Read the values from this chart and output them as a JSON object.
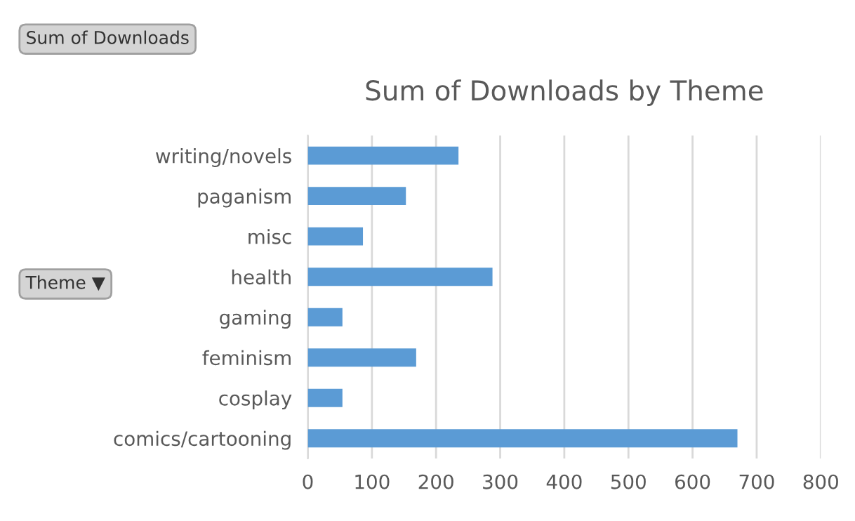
{
  "chart_data": {
    "type": "bar",
    "orientation": "horizontal",
    "title": "Sum of Downloads by Theme",
    "categories": [
      "writing/novels",
      "paganism",
      "misc",
      "health",
      "gaming",
      "feminism",
      "cosplay",
      "comics/cartooning"
    ],
    "values": [
      235,
      153,
      86,
      288,
      54,
      169,
      54,
      670
    ],
    "color": "#5b9bd5",
    "xlim": [
      0,
      800
    ],
    "xticks": [
      0,
      100,
      200,
      300,
      400,
      500,
      600,
      700,
      800
    ],
    "grid": "x",
    "annotations": [
      "Sum of Downloads",
      "Theme ▼"
    ]
  }
}
